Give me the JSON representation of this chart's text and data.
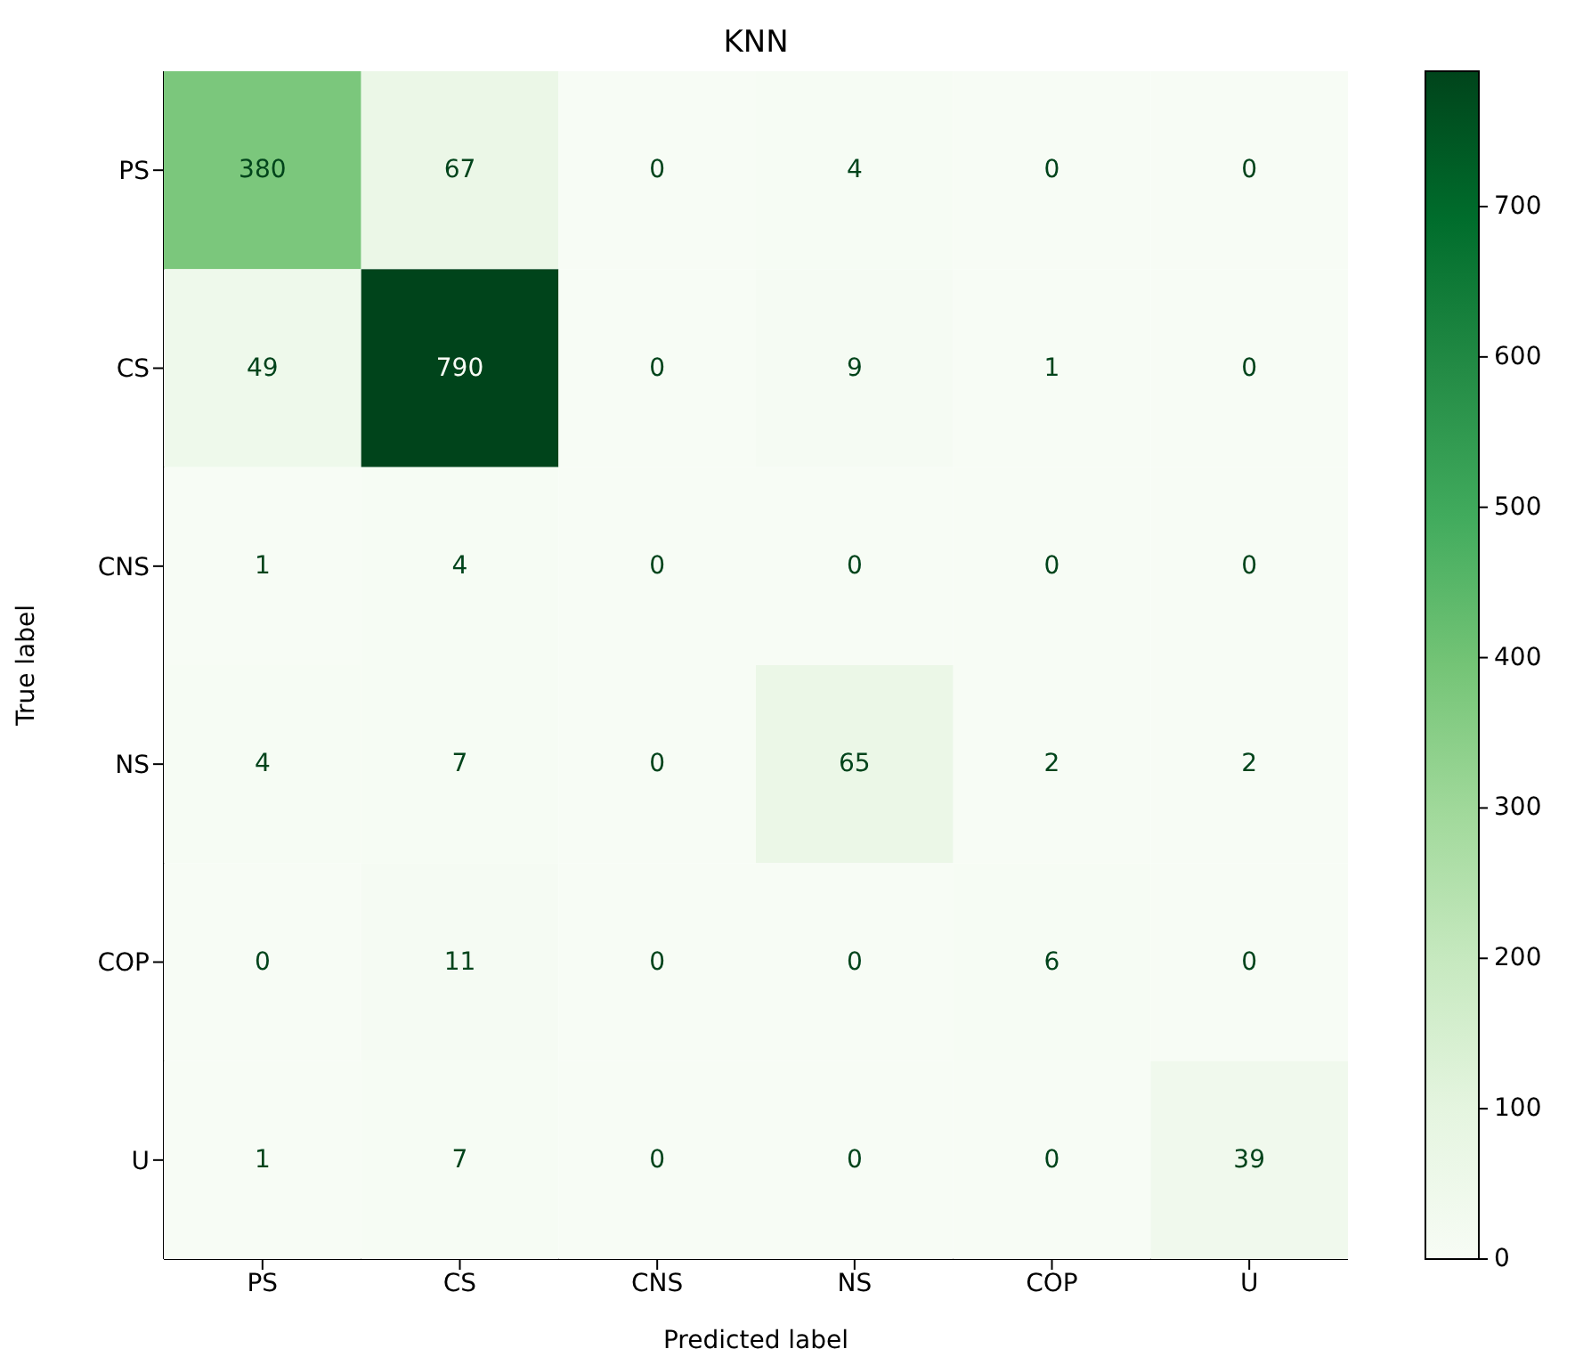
{
  "chart_data": {
    "type": "heatmap",
    "title": "KNN",
    "xlabel": "Predicted label",
    "ylabel": "True label",
    "categories": [
      "PS",
      "CS",
      "CNS",
      "NS",
      "COP",
      "U"
    ],
    "y_categories": [
      "PS",
      "CS",
      "CNS",
      "NS",
      "COP",
      "U"
    ],
    "cells": [
      [
        380,
        67,
        0,
        4,
        0,
        0
      ],
      [
        49,
        790,
        0,
        9,
        1,
        0
      ],
      [
        1,
        4,
        0,
        0,
        0,
        0
      ],
      [
        4,
        7,
        0,
        65,
        2,
        2
      ],
      [
        0,
        11,
        0,
        0,
        6,
        0
      ],
      [
        1,
        7,
        0,
        0,
        0,
        39
      ]
    ],
    "clim": [
      0,
      790
    ],
    "cticks": [
      0,
      100,
      200,
      300,
      400,
      500,
      600,
      700
    ],
    "data_labels": true
  }
}
